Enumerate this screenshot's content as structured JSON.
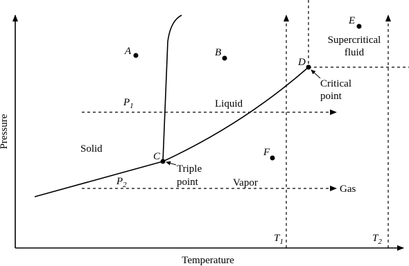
{
  "axes": {
    "x_label": "Temperature",
    "y_label": "Pressure"
  },
  "points": {
    "A": "A",
    "B": "B",
    "C": "C",
    "D": "D",
    "E": "E",
    "F": "F"
  },
  "regions": {
    "solid": "Solid",
    "liquid": "Liquid",
    "vapor": "Vapor",
    "gas": "Gas",
    "supercritical_1": "Supercritical",
    "supercritical_2": "fluid"
  },
  "annotations": {
    "critical_1": "Critical",
    "critical_2": "point",
    "triple_1": "Triple",
    "triple_2": "point"
  },
  "paths": {
    "P1": {
      "symbol": "P",
      "subscript": "1"
    },
    "P2": {
      "symbol": "P",
      "subscript": "2"
    },
    "T1": {
      "symbol": "T",
      "subscript": "1"
    },
    "T2": {
      "symbol": "T",
      "subscript": "2"
    }
  }
}
